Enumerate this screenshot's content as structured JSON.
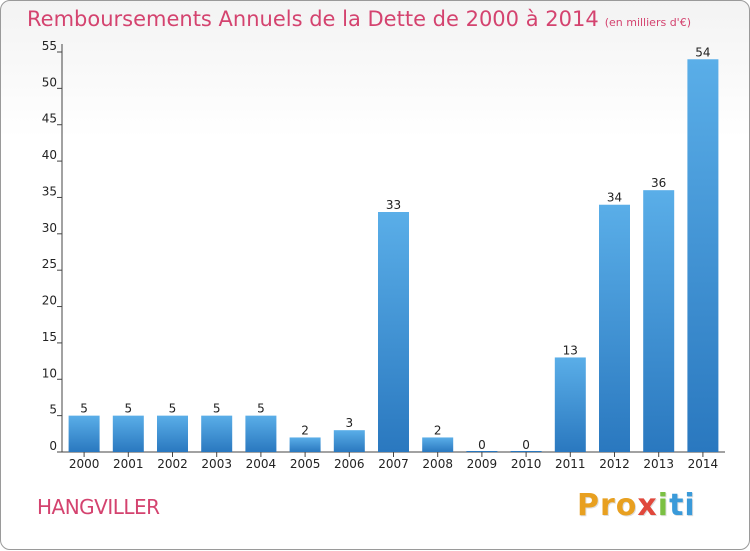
{
  "header": {
    "title": "Remboursements Annuels de la Dette de 2000 à 2014",
    "unit": "(en milliers d'€)"
  },
  "footer": {
    "commune": "HANGVILLER",
    "logo": [
      "Pro",
      "x",
      "i",
      "ti"
    ]
  },
  "colors": {
    "bar_top": "#5aaee8",
    "bar_bottom": "#2a78bf",
    "title": "#d4436f"
  },
  "chart_data": {
    "type": "bar",
    "title": "Remboursements Annuels de la Dette de 2000 à 2014",
    "xlabel": "",
    "ylabel": "",
    "categories": [
      "2000",
      "2001",
      "2002",
      "2003",
      "2004",
      "2005",
      "2006",
      "2007",
      "2008",
      "2009",
      "2010",
      "2011",
      "2012",
      "2013",
      "2014"
    ],
    "values": [
      5,
      5,
      5,
      5,
      5,
      2,
      3,
      33,
      2,
      0,
      0,
      13,
      34,
      36,
      54
    ],
    "ylim": [
      0,
      55
    ],
    "yticks": [
      0,
      5,
      10,
      15,
      20,
      25,
      30,
      35,
      40,
      45,
      50,
      55
    ],
    "grid": false,
    "legend": "none"
  }
}
